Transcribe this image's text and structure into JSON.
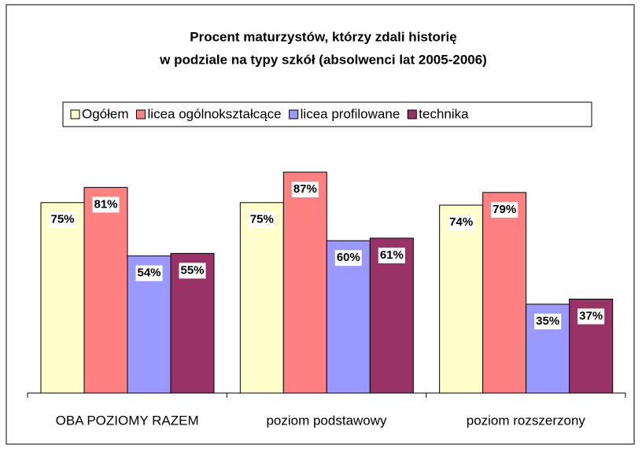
{
  "chart_data": {
    "type": "bar",
    "title": [
      "Procent maturzystów, którzy zdali historię",
      "w podziale na typy szkół (absolwenci lat 2005-2006)"
    ],
    "categories": [
      "OBA POZIOMY RAZEM",
      "poziom podstawowy",
      "poziom rozszerzony"
    ],
    "series": [
      {
        "name": "Ogółem",
        "color": "#ffffcc",
        "values": [
          75,
          75,
          74
        ],
        "value_labels": [
          "75%",
          "75%",
          "74%"
        ]
      },
      {
        "name": "licea ogólnokształcące",
        "color": "#ff8080",
        "values": [
          81,
          87,
          79
        ],
        "value_labels": [
          "81%",
          "87%",
          "79%"
        ]
      },
      {
        "name": "licea profilowane",
        "color": "#9999ff",
        "values": [
          54,
          60,
          35
        ],
        "value_labels": [
          "54%",
          "60%",
          "35%"
        ]
      },
      {
        "name": "technika",
        "color": "#993366",
        "values": [
          55,
          61,
          37
        ],
        "value_labels": [
          "55%",
          "61%",
          "37%"
        ]
      }
    ],
    "ylim": [
      0,
      100
    ],
    "legend": "top"
  }
}
